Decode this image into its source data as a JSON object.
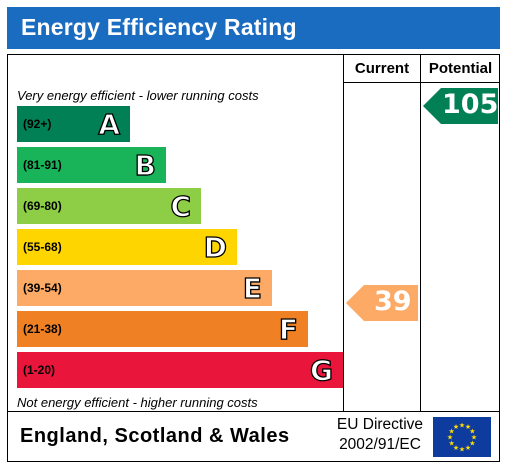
{
  "header": {
    "title": "Energy Efficiency Rating"
  },
  "columns": {
    "current": "Current",
    "potential": "Potential"
  },
  "notes": {
    "top": "Very energy efficient - lower running costs",
    "bottom": "Not energy efficient - higher running costs"
  },
  "bands": [
    {
      "range": "(92+)",
      "letter": "A",
      "color": "#008054"
    },
    {
      "range": "(81-91)",
      "letter": "B",
      "color": "#19b459"
    },
    {
      "range": "(69-80)",
      "letter": "C",
      "color": "#8dce46"
    },
    {
      "range": "(55-68)",
      "letter": "D",
      "color": "#ffd500"
    },
    {
      "range": "(39-54)",
      "letter": "E",
      "color": "#fcaa65"
    },
    {
      "range": "(21-38)",
      "letter": "F",
      "color": "#ef8023"
    },
    {
      "range": "(1-20)",
      "letter": "G",
      "color": "#e9153b"
    }
  ],
  "ratings": {
    "current": {
      "value": "39",
      "color": "#fcaa65"
    },
    "potential": {
      "value": "105",
      "color": "#008054"
    }
  },
  "footer": {
    "country": "England, Scotland & Wales",
    "directive_line1": "EU Directive",
    "directive_line2": "2002/91/EC",
    "flag_color": "#0d3b9e",
    "star_color": "#ffdd00"
  }
}
